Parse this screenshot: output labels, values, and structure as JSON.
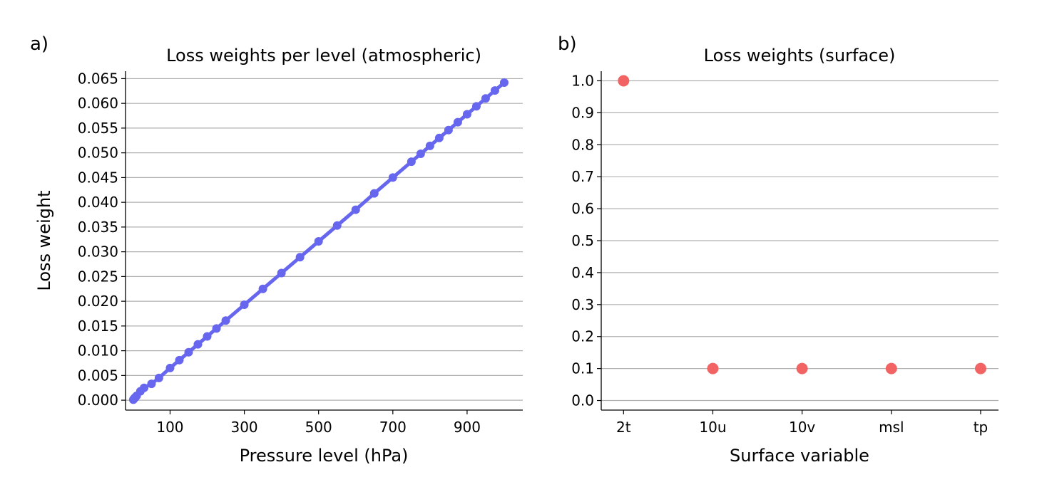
{
  "colors": {
    "line_series": "#6666ee",
    "dot_series": "#f26464",
    "grid": "#b0b0b0"
  },
  "chart_data": [
    {
      "panel_label": "a)",
      "type": "line",
      "title": "Loss weights per level (atmospheric)",
      "xlabel": "Pressure level (hPa)",
      "ylabel": "Loss weight",
      "xlim": [
        -20,
        1050
      ],
      "ylim": [
        -0.002,
        0.0665
      ],
      "xticks": [
        100,
        300,
        500,
        700,
        900
      ],
      "xtick_labels": [
        "100",
        "300",
        "500",
        "700",
        "900"
      ],
      "yticks": [
        0.0,
        0.005,
        0.01,
        0.015,
        0.02,
        0.025,
        0.03,
        0.035,
        0.04,
        0.045,
        0.05,
        0.055,
        0.06,
        0.065
      ],
      "ytick_labels": [
        "0.000",
        "0.005",
        "0.010",
        "0.015",
        "0.020",
        "0.025",
        "0.030",
        "0.035",
        "0.040",
        "0.045",
        "0.050",
        "0.055",
        "0.060",
        "0.065"
      ],
      "grid_y": true,
      "series": [
        {
          "x": [
            1,
            2,
            3,
            5,
            7,
            10,
            20,
            30,
            50,
            70,
            100,
            125,
            150,
            175,
            200,
            225,
            250,
            300,
            350,
            400,
            450,
            500,
            550,
            600,
            650,
            700,
            750,
            775,
            800,
            825,
            850,
            875,
            900,
            925,
            950,
            975,
            1000
          ],
          "y": [
            0.0001,
            0.0002,
            0.0003,
            0.0005,
            0.0006,
            0.0009,
            0.0018,
            0.0025,
            0.0033,
            0.0045,
            0.0065,
            0.0081,
            0.0097,
            0.0113,
            0.0129,
            0.0145,
            0.0161,
            0.0193,
            0.0225,
            0.0257,
            0.0289,
            0.0321,
            0.0353,
            0.0385,
            0.0418,
            0.045,
            0.0482,
            0.0498,
            0.0514,
            0.053,
            0.0546,
            0.0562,
            0.0578,
            0.0594,
            0.061,
            0.0626,
            0.0642
          ]
        }
      ]
    },
    {
      "panel_label": "b)",
      "type": "scatter",
      "title": "Loss weights (surface)",
      "xlabel": "Surface variable",
      "ylabel": "",
      "categories": [
        "2t",
        "10u",
        "10v",
        "msl",
        "tp"
      ],
      "values": [
        1.0,
        0.1,
        0.1,
        0.1,
        0.1
      ],
      "ylim": [
        -0.03,
        1.03
      ],
      "yticks": [
        0.0,
        0.1,
        0.2,
        0.3,
        0.4,
        0.5,
        0.6,
        0.7,
        0.8,
        0.9,
        1.0
      ],
      "ytick_labels": [
        "0.0",
        "0.1",
        "0.2",
        "0.3",
        "0.4",
        "0.5",
        "0.6",
        "0.7",
        "0.8",
        "0.9",
        "1.0"
      ],
      "grid_y": true
    }
  ]
}
